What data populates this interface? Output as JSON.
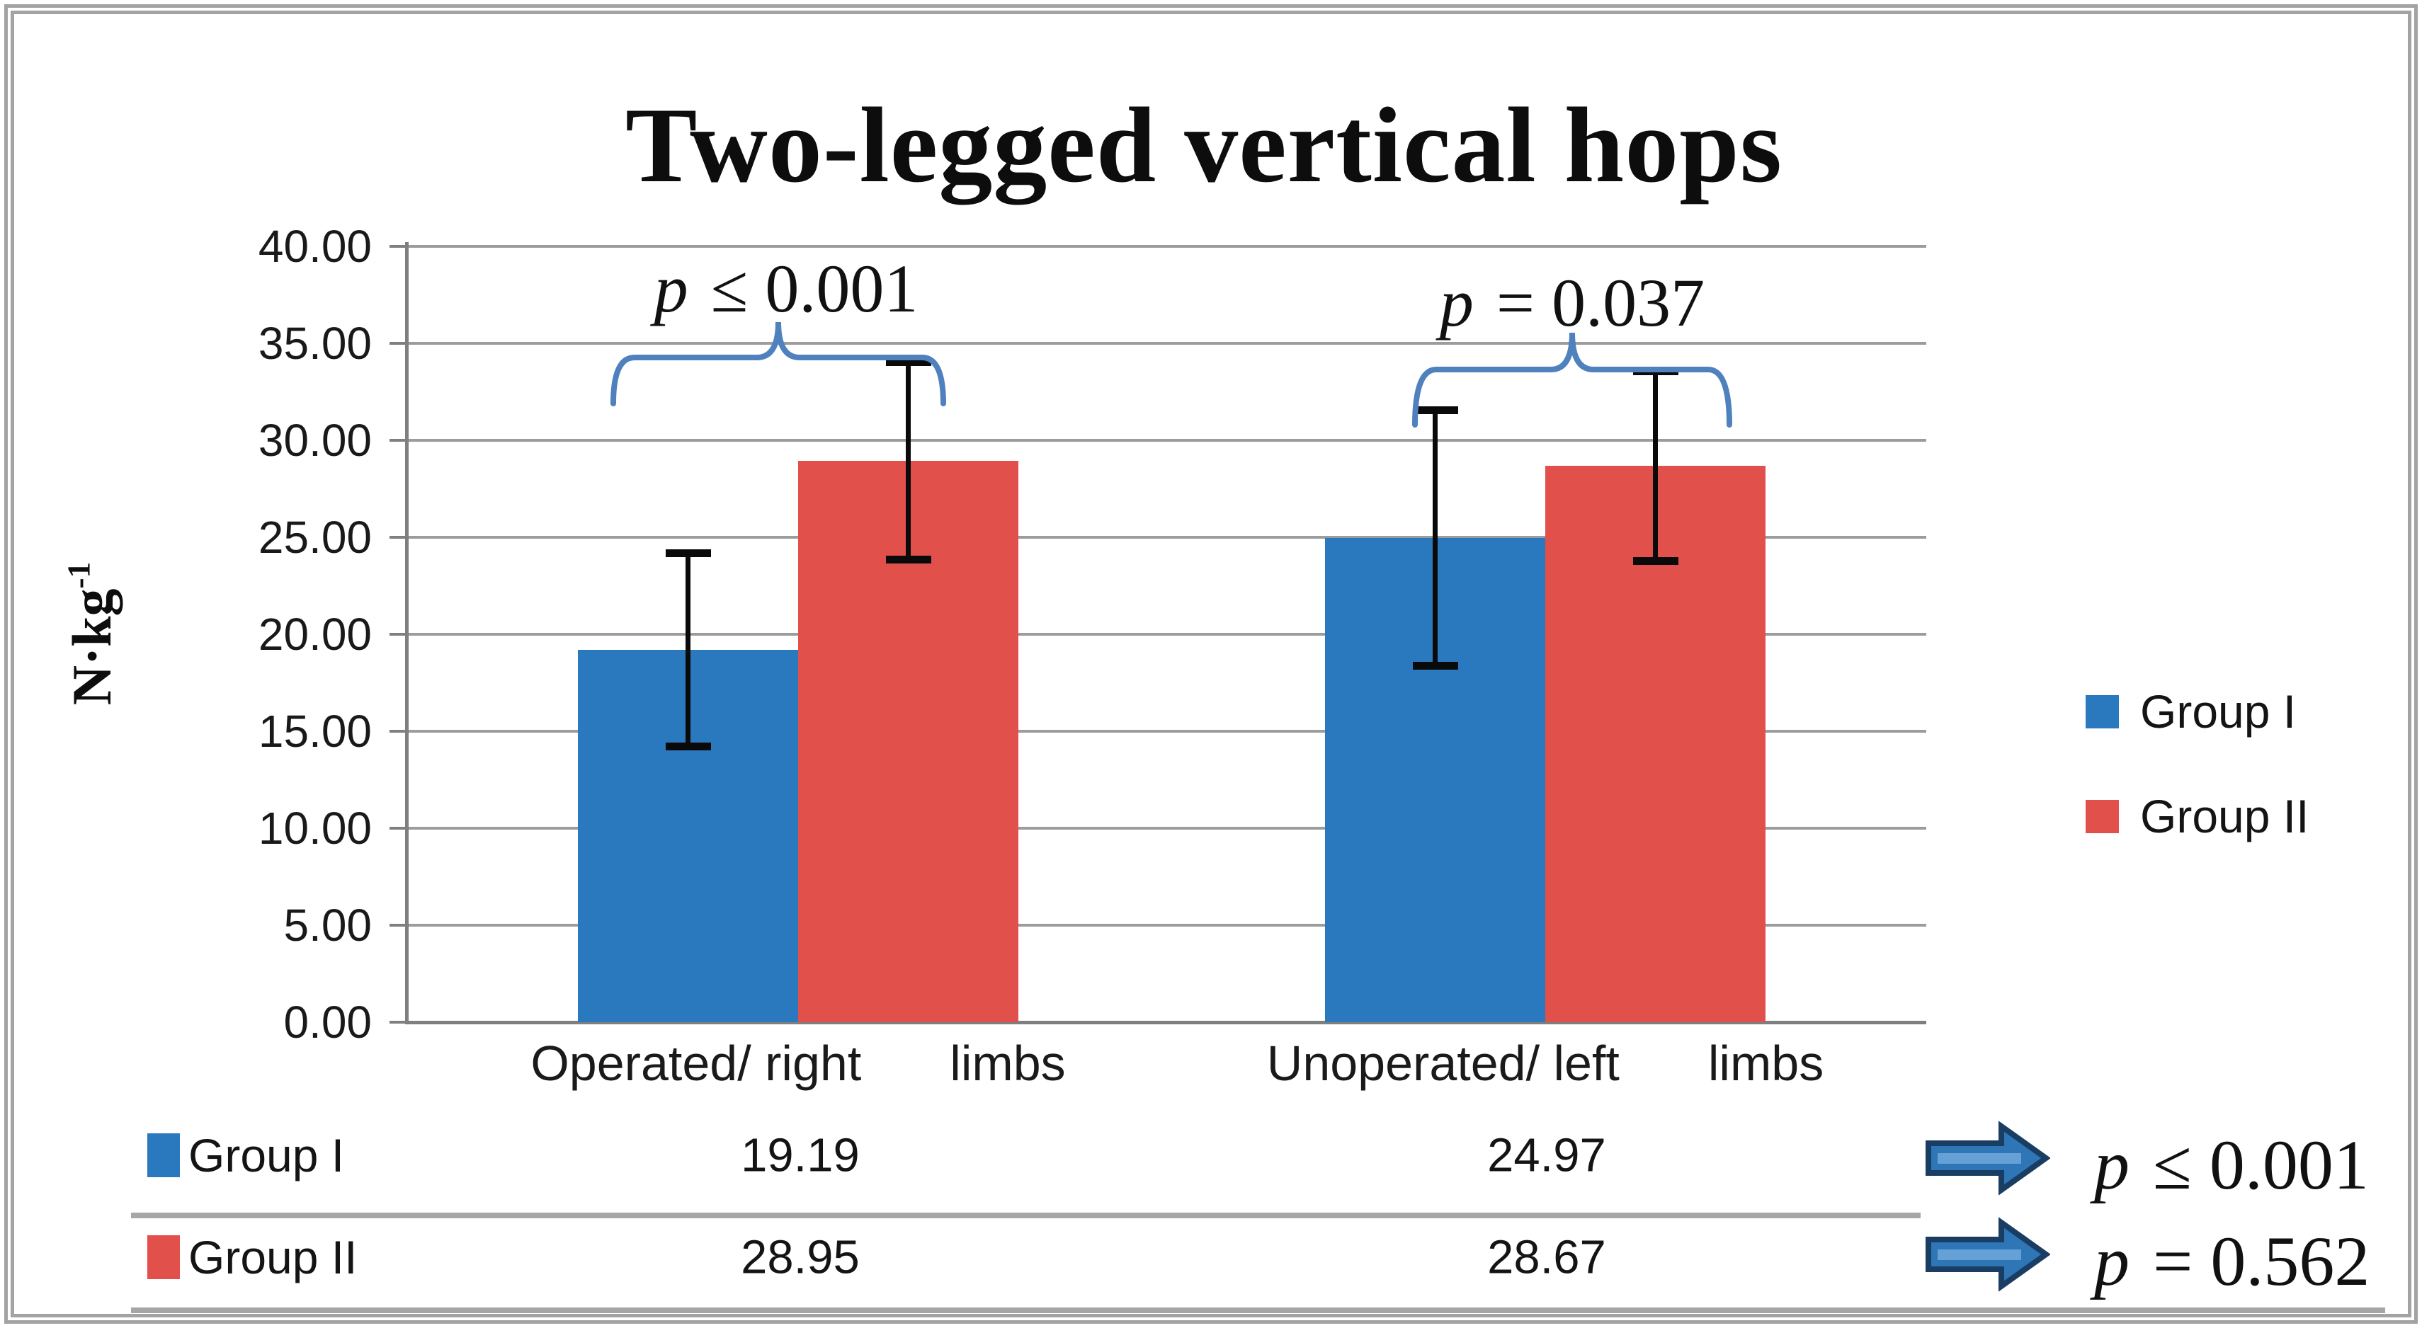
{
  "chart_data": {
    "type": "bar",
    "title": "Two-legged vertical hops",
    "ylabel_base": "N·kg",
    "ylabel_exponent": "-1",
    "ylim": [
      0,
      40
    ],
    "ytick_step": 5,
    "ytick_labels": [
      "40.00",
      "35.00",
      "30.00",
      "25.00",
      "20.00",
      "15.00",
      "10.00",
      "5.00",
      "0.00"
    ],
    "grid": true,
    "legend_position": "right",
    "categories": [
      {
        "label_main": "Operated/ right",
        "label_suffix": "limbs"
      },
      {
        "label_main": "Unoperated/ left",
        "label_suffix": "limbs"
      }
    ],
    "series": [
      {
        "name": "Group I",
        "color": "#2a79bf",
        "values": [
          19.19,
          24.97
        ],
        "error_bars": [
          5.0,
          6.6
        ]
      },
      {
        "name": "Group II",
        "color": "#e2504b",
        "values": [
          28.95,
          28.67
        ],
        "error_bars": [
          5.1,
          4.9
        ]
      }
    ],
    "annotations": [
      {
        "category_index": 0,
        "var": "p",
        "relation": "≤",
        "value": "0.001"
      },
      {
        "category_index": 1,
        "var": "p",
        "relation": "=",
        "value": "0.037"
      }
    ],
    "colors": {
      "gridline": "#9c9c9c",
      "axis": "#7f7f7f",
      "brace": "#4e81bd",
      "error_bar": "#0a0a0a",
      "arrow_fill": "#2e76b5",
      "arrow_band": "#6fa8dc",
      "arrow_outline": "#1a3d63",
      "table_line": "#a6a6a6",
      "frame": "#a3a3a3"
    }
  },
  "data_table": {
    "rows": [
      {
        "name": "Group I",
        "color": "#2a79bf",
        "values": [
          "19.19",
          "24.97"
        ]
      },
      {
        "name": "Group II",
        "color": "#e2504b",
        "values": [
          "28.95",
          "28.67"
        ]
      }
    ]
  },
  "footer_stats": [
    {
      "var": "p",
      "relation": "≤",
      "value": "0.001"
    },
    {
      "var": "p",
      "relation": "=",
      "value": "0.562"
    }
  ]
}
